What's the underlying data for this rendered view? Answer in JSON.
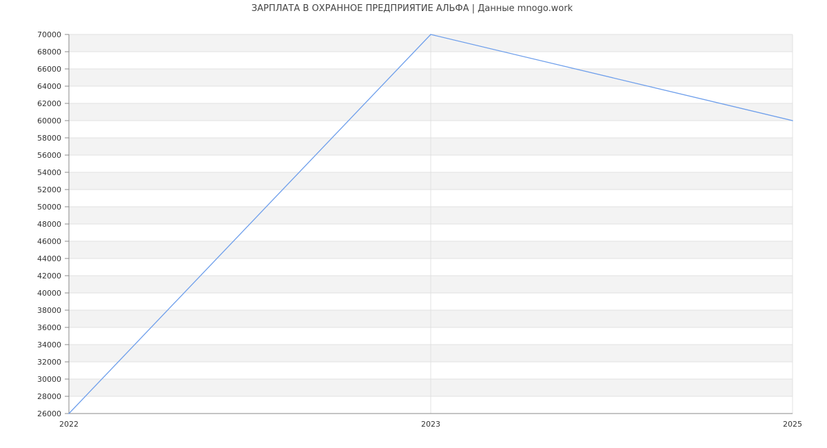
{
  "chart_data": {
    "type": "line",
    "title": "ЗАРПЛАТА В ОХРАННОЕ ПРЕДПРИЯТИЕ АЛЬФА | Данные mnogo.work",
    "xlabel": "",
    "ylabel": "",
    "categories": [
      "2022",
      "2023",
      "2025"
    ],
    "series": [
      {
        "values": [
          26000,
          70000,
          60000
        ],
        "color": "#6d9eeb"
      }
    ],
    "ylim": [
      26000,
      70000
    ],
    "ytick_step": 2000,
    "grid": true,
    "band_color": "#f3f3f3",
    "grid_color": "#e0e0e0",
    "axis_color": "#888888"
  }
}
